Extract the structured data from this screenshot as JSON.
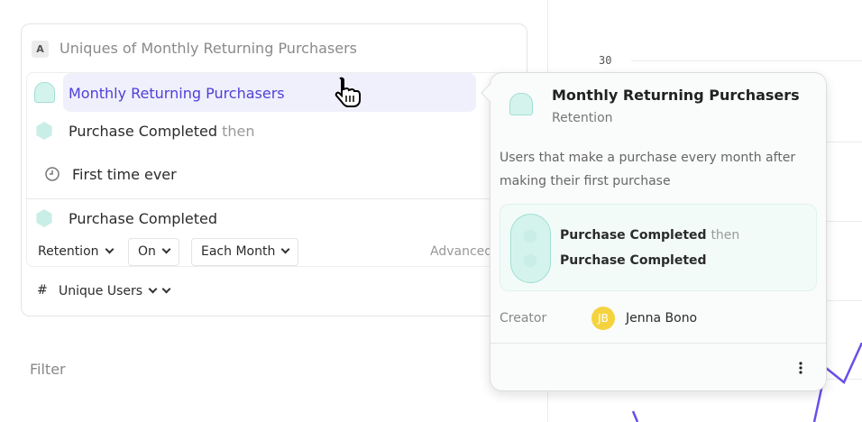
{
  "chart": {
    "y_tick": "30",
    "line_color": "#6a4ee8"
  },
  "query": {
    "badge": "A",
    "title": "Uniques of Monthly Returning Purchasers",
    "metric": "Monthly Returning Purchasers",
    "step1": "Purchase Completed",
    "then": "then",
    "first_time": "First time ever",
    "step2": "Purchase Completed",
    "retention": "Retention",
    "on": "On",
    "each_month": "Each Month",
    "advanced": "Advanced",
    "hash": "#",
    "measure": "Unique Users"
  },
  "filter": "Filter",
  "popover": {
    "title": "Monthly Returning Purchasers",
    "type": "Retention",
    "description": "Users that make a purchase every month after making their first purchase",
    "step1": "Purchase Completed",
    "then": "then",
    "step2": "Purchase Completed",
    "creator_label": "Creator",
    "creator_initials": "JB",
    "creator_name": "Jenna Bono"
  },
  "colors": {
    "accent": "#4f3fd8",
    "teal": "#c9eee7",
    "avatar": "#f5d33f"
  }
}
